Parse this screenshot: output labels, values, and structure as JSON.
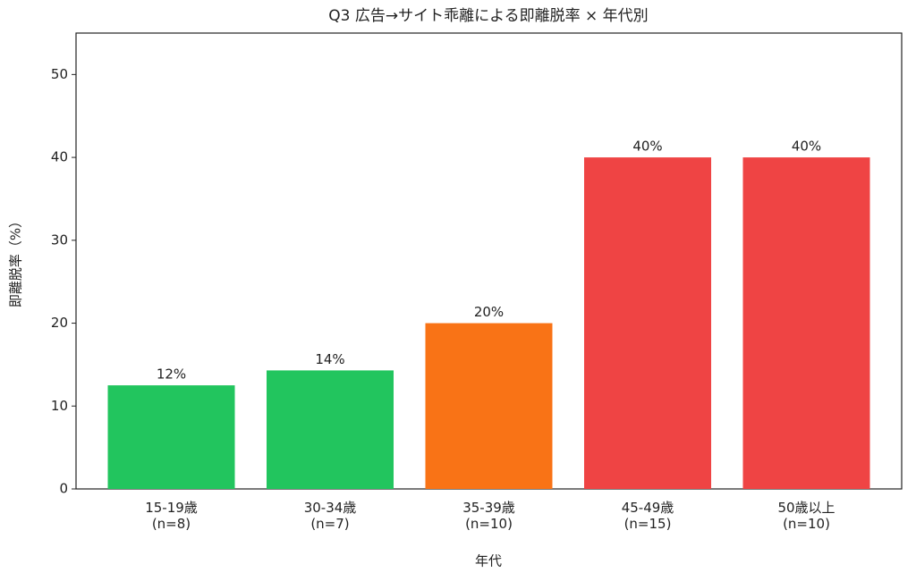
{
  "chart_data": {
    "type": "bar",
    "title": "Q3 広告→サイト乖離による即離脱率 × 年代別",
    "x_label": "年代",
    "y_label": "即離脱率（%）",
    "categories": [
      "15-19歳\n(n=8)",
      "30-34歳\n(n=7)",
      "35-39歳\n(n=10)",
      "45-49歳\n(n=15)",
      "50歳以上\n(n=10)"
    ],
    "values": [
      12.5,
      14.3,
      20,
      40,
      40
    ],
    "value_labels": [
      "12%",
      "14%",
      "20%",
      "40%",
      "40%"
    ],
    "colors": [
      "#22c55e",
      "#22c55e",
      "#f97316",
      "#ef4444",
      "#ef4444"
    ],
    "ylim": [
      0,
      55
    ],
    "yticks": [
      0,
      10,
      20,
      30,
      40,
      50
    ],
    "grid": false
  }
}
